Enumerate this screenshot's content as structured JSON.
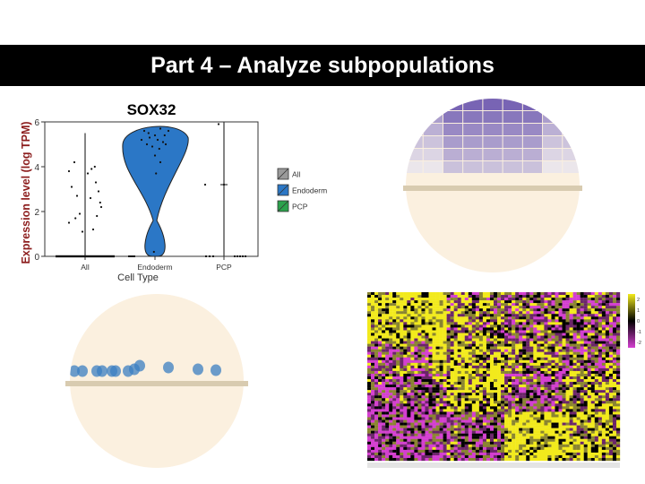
{
  "slide": {
    "title": "Part 4 – Analyze subpopulations"
  },
  "colors": {
    "banner": "#000000",
    "violin_all": "#9a9a9a",
    "violin_endoderm": "#2b77c6",
    "violin_pcp": "#2ca24c",
    "ylabel": "#8c1d1d",
    "disk_fill": "#fbf0df",
    "disk_line": "#d8cbb0",
    "heat_high": "#f2ea1c",
    "heat_mid": "#000000",
    "heat_low": "#d43fd0",
    "dot_blue": "#3b7fc2"
  },
  "chart_data": [
    {
      "type": "violin",
      "title": "SOX32",
      "xlabel": "Cell Type",
      "ylabel": "Expression level (log TPM)",
      "ylim": [
        0,
        6
      ],
      "yticks": [
        "0",
        "2",
        "4",
        "6"
      ],
      "categories": [
        "All",
        "Endoderm",
        "PCP"
      ],
      "legend": {
        "placement": "right",
        "entries": [
          "All",
          "Endoderm",
          "PCP"
        ]
      },
      "series": [
        {
          "name": "All",
          "points": [
            [
              -0.3,
              3.8
            ],
            [
              -0.25,
              3.1
            ],
            [
              -0.2,
              4.2
            ],
            [
              -0.15,
              2.7
            ],
            [
              -0.3,
              1.5
            ],
            [
              -0.1,
              1.9
            ],
            [
              0.05,
              3.7
            ],
            [
              0.1,
              2.6
            ],
            [
              0.15,
              1.2
            ],
            [
              0.2,
              3.3
            ],
            [
              0.25,
              2.9
            ],
            [
              0.28,
              2.4
            ],
            [
              0.22,
              1.8
            ],
            [
              -0.05,
              1.1
            ],
            [
              0.3,
              2.2
            ],
            [
              0.12,
              3.9
            ],
            [
              -0.18,
              1.7
            ],
            [
              0.18,
              4.0
            ]
          ]
        },
        {
          "name": "Endoderm",
          "points": [
            [
              -0.2,
              5.6
            ],
            [
              -0.1,
              5.3
            ],
            [
              0.0,
              5.4
            ],
            [
              0.1,
              5.7
            ],
            [
              0.15,
              5.1
            ],
            [
              -0.05,
              4.9
            ],
            [
              0.05,
              5.2
            ],
            [
              0.2,
              5.0
            ],
            [
              -0.15,
              5.0
            ],
            [
              0.0,
              4.5
            ],
            [
              0.08,
              4.8
            ],
            [
              -0.12,
              5.5
            ],
            [
              0.18,
              5.4
            ],
            [
              0.02,
              3.7
            ],
            [
              -0.02,
              0.2
            ],
            [
              0.25,
              5.6
            ],
            [
              -0.25,
              5.2
            ],
            [
              0.1,
              4.2
            ]
          ]
        },
        {
          "name": "PCP",
          "points": [
            [
              -0.35,
              3.2
            ],
            [
              -0.1,
              5.9
            ],
            [
              0.0,
              3.2
            ]
          ]
        }
      ]
    },
    {
      "type": "heatmap",
      "colorbar_ticks": [
        "2",
        "1",
        "0",
        "-1",
        "-2"
      ],
      "color_range": [
        -2,
        2
      ]
    }
  ]
}
